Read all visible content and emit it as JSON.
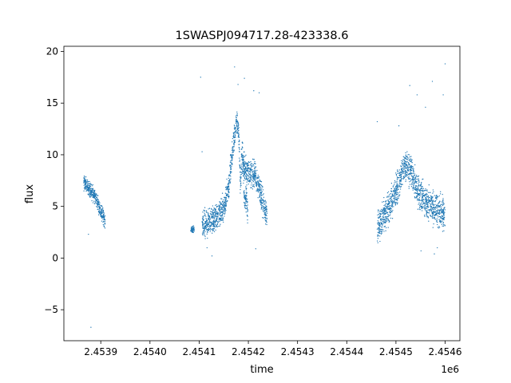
{
  "chart_data": {
    "type": "scatter",
    "title": "1SWASPJ094717.28-423338.6",
    "xlabel": "time",
    "ylabel": "flux",
    "x_offset_label": "1e6",
    "xlim": [
      2453825,
      2454630
    ],
    "ylim": [
      -8.0,
      20.5
    ],
    "x_ticks": [
      2453900,
      2454000,
      2454100,
      2454200,
      2454300,
      2454400,
      2454500,
      2454600
    ],
    "x_tick_labels": [
      "2.4539",
      "2.4540",
      "2.4541",
      "2.4542",
      "2.4543",
      "2.4544",
      "2.4545",
      "2.4546"
    ],
    "y_ticks": [
      -5,
      0,
      5,
      10,
      15,
      20
    ],
    "y_tick_labels": [
      "−5",
      "0",
      "5",
      "10",
      "15",
      "20"
    ],
    "grid": false,
    "marker_color": "#1f77b4",
    "series": [
      {
        "segments": [
          {
            "x": [
              2453865,
              2453872,
              2453880,
              2453888,
              2453893,
              2453898,
              2453903,
              2453906,
              2453909
            ],
            "y": [
              7.3,
              7.0,
              6.5,
              6.0,
              5.4,
              4.8,
              4.3,
              3.9,
              3.6
            ],
            "scatter": 0.6
          },
          {
            "x": [
              2454083,
              2454090
            ],
            "y": [
              2.7,
              2.8
            ],
            "scatter": 0.25
          },
          {
            "x": [
              2454106,
              2454118,
              2454130,
              2454142,
              2454152,
              2454160,
              2454166,
              2454172,
              2454176,
              2454180,
              2454184,
              2454188,
              2454192,
              2454196,
              2454199
            ],
            "y": [
              3.2,
              3.3,
              3.7,
              4.2,
              5.0,
              7.0,
              9.5,
              12.0,
              13.5,
              12.5,
              7.0,
              11.0,
              5.5,
              6.0,
              4.2
            ],
            "scatter": 1.1
          },
          {
            "x": [
              2454188,
              2454196,
              2454204,
              2454212,
              2454218,
              2454224,
              2454232,
              2454238
            ],
            "y": [
              9.0,
              8.5,
              8.2,
              8.0,
              7.5,
              6.5,
              5.0,
              4.2
            ],
            "scatter": 1.1
          },
          {
            "x": [
              2454462,
              2454472,
              2454482,
              2454492,
              2454500,
              2454508,
              2454514,
              2454520,
              2454530,
              2454540,
              2454550,
              2454560,
              2454570,
              2454580,
              2454590,
              2454600
            ],
            "y": [
              3.0,
              3.6,
              4.5,
              5.5,
              6.5,
              7.5,
              8.5,
              9.0,
              8.5,
              7.0,
              6.0,
              5.5,
              5.0,
              4.8,
              4.5,
              4.3
            ],
            "scatter": 1.3
          }
        ]
      }
    ],
    "outliers": [
      {
        "x": 2453880,
        "y": -6.7
      },
      {
        "x": 2453875,
        "y": 2.3
      },
      {
        "x": 2454103,
        "y": 17.5
      },
      {
        "x": 2454106,
        "y": 10.3
      },
      {
        "x": 2454116,
        "y": 1.0
      },
      {
        "x": 2454126,
        "y": 0.2
      },
      {
        "x": 2454172,
        "y": 18.5
      },
      {
        "x": 2454179,
        "y": 16.8
      },
      {
        "x": 2454192,
        "y": 17.4
      },
      {
        "x": 2454211,
        "y": 16.2
      },
      {
        "x": 2454222,
        "y": 16.0
      },
      {
        "x": 2454215,
        "y": 0.9
      },
      {
        "x": 2454462,
        "y": 13.2
      },
      {
        "x": 2454506,
        "y": 12.8
      },
      {
        "x": 2454528,
        "y": 16.7
      },
      {
        "x": 2454543,
        "y": 15.8
      },
      {
        "x": 2454560,
        "y": 14.6
      },
      {
        "x": 2454574,
        "y": 17.1
      },
      {
        "x": 2454596,
        "y": 15.8
      },
      {
        "x": 2454600,
        "y": 18.8
      },
      {
        "x": 2454551,
        "y": 0.7
      },
      {
        "x": 2454578,
        "y": 0.4
      },
      {
        "x": 2454584,
        "y": 1.0
      }
    ]
  }
}
